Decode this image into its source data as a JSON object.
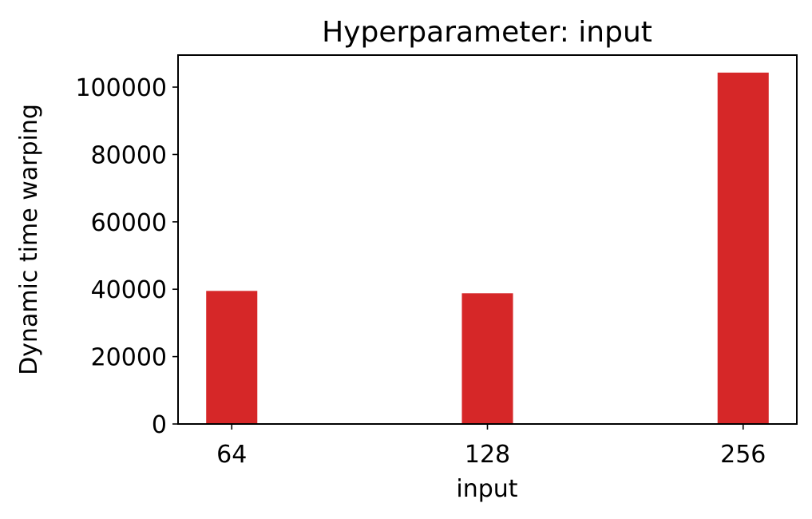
{
  "chart_data": {
    "type": "bar",
    "title": "Hyperparameter: input",
    "xlabel": "input",
    "ylabel": "Dynamic time warping",
    "categories": [
      "64",
      "128",
      "256"
    ],
    "values": [
      39500,
      38800,
      104300
    ],
    "ylim": [
      0,
      109500
    ],
    "yticks": [
      0,
      20000,
      40000,
      60000,
      80000,
      100000
    ],
    "ytick_labels": [
      "0",
      "20000",
      "40000",
      "60000",
      "80000",
      "100000"
    ],
    "bar_color": "#d62728",
    "grid": false,
    "legend": "none"
  }
}
